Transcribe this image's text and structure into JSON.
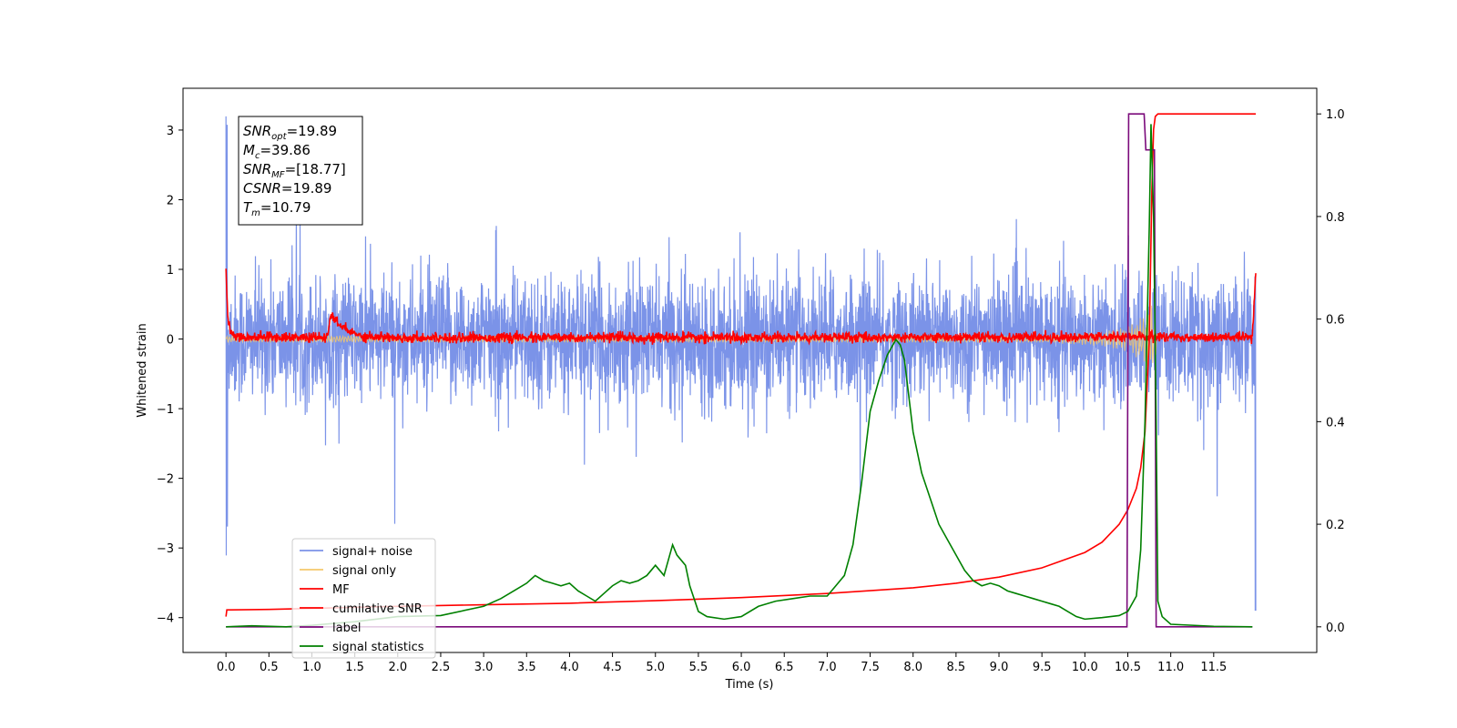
{
  "chart_data": {
    "type": "line",
    "xlabel": "Time (s)",
    "ylabel": "Whitened strain",
    "xlim": [
      -0.5,
      12.7
    ],
    "ylim": [
      -4.5,
      3.6
    ],
    "ylim_right": [
      -0.05,
      1.05
    ],
    "xticks": [
      0.0,
      0.5,
      1.0,
      1.5,
      2.0,
      2.5,
      3.0,
      3.5,
      4.0,
      4.5,
      5.0,
      5.5,
      6.0,
      6.5,
      7.0,
      7.5,
      8.0,
      8.5,
      9.0,
      9.5,
      10.0,
      10.5,
      11.0,
      11.5
    ],
    "xtick_labels": [
      "0.0",
      "0.5",
      "1.0",
      "1.5",
      "2.0",
      "2.5",
      "3.0",
      "3.5",
      "4.0",
      "4.5",
      "5.0",
      "5.5",
      "6.0",
      "6.5",
      "7.0",
      "7.5",
      "8.0",
      "8.5",
      "9.0",
      "9.5",
      "10.0",
      "10.5",
      "11.0",
      "11.5"
    ],
    "yticks_left": [
      3,
      2,
      1,
      0,
      -1,
      -2,
      -3,
      -4
    ],
    "ytick_labels_left": [
      "3",
      "2",
      "1",
      "0",
      "−1",
      "−2",
      "−3",
      "−4"
    ],
    "yticks_right": [
      1.0,
      0.8,
      0.6,
      0.4,
      0.2,
      0.0
    ],
    "ytick_labels_right": [
      "1.0",
      "0.8",
      "0.6",
      "0.4",
      "0.2",
      "0.0"
    ],
    "grid": false,
    "legend_position": "lower-left",
    "annotation": {
      "lines": [
        {
          "base": "SNR",
          "sub": "opt",
          "rest": "=19.89"
        },
        {
          "base": "M",
          "sub": "c",
          "rest": "=39.86"
        },
        {
          "base": "SNR",
          "sub": "MF",
          "rest": "=[18.77]"
        },
        {
          "base": "CSNR",
          "sub": "",
          "rest": "=19.89"
        },
        {
          "base": "T",
          "sub": "m",
          "rest": "=10.79"
        }
      ],
      "position": "upper-left"
    },
    "series": [
      {
        "name": "signal+ noise",
        "color": "#7b93e8",
        "axis": "left",
        "description": "whitened noise around 0",
        "noise_amplitude": 0.45,
        "x_range": [
          0.0,
          11.99
        ]
      },
      {
        "name": "signal only",
        "color": "#f5c86b",
        "axis": "left",
        "envelope": [
          [
            0.0,
            0.05
          ],
          [
            9.5,
            0.05
          ],
          [
            10.2,
            0.1
          ],
          [
            10.5,
            0.18
          ],
          [
            10.7,
            0.35
          ],
          [
            10.79,
            0.5
          ],
          [
            10.85,
            0.05
          ]
        ]
      },
      {
        "name": "MF",
        "color": "#ff0000",
        "axis": "left",
        "x": [
          0.0,
          0.02,
          0.05,
          0.1,
          0.2,
          1.18,
          1.22,
          1.3,
          1.45,
          1.6,
          2.0,
          6.0,
          10.0,
          11.0,
          11.95,
          11.99
        ],
        "y": [
          1.0,
          0.35,
          0.12,
          0.05,
          0.03,
          0.02,
          0.35,
          0.22,
          0.1,
          0.04,
          0.02,
          0.02,
          0.03,
          0.03,
          0.02,
          0.95
        ]
      },
      {
        "name": "cumilative SNR",
        "color": "#ff0000",
        "axis": "right",
        "x": [
          0.0,
          0.01,
          0.5,
          1.0,
          2.0,
          3.0,
          4.0,
          5.0,
          6.0,
          7.0,
          8.0,
          8.5,
          9.0,
          9.5,
          10.0,
          10.2,
          10.4,
          10.5,
          10.6,
          10.65,
          10.7,
          10.75,
          10.78,
          10.8,
          10.82,
          10.85,
          11.0,
          11.5,
          11.99
        ],
        "y": [
          0.02,
          0.033,
          0.034,
          0.036,
          0.04,
          0.043,
          0.046,
          0.051,
          0.057,
          0.065,
          0.076,
          0.085,
          0.097,
          0.115,
          0.145,
          0.165,
          0.2,
          0.228,
          0.27,
          0.31,
          0.38,
          0.56,
          0.85,
          0.97,
          0.995,
          1.0,
          1.0,
          1.0,
          1.0
        ]
      },
      {
        "name": "label",
        "color": "#7b0a7b",
        "axis": "right",
        "x": [
          0.0,
          10.49,
          10.51,
          10.69,
          10.71,
          10.81,
          10.83,
          11.95
        ],
        "y": [
          0.0,
          0.0,
          1.0,
          1.0,
          0.93,
          0.93,
          0.0,
          0.0
        ]
      },
      {
        "name": "signal statistics",
        "color": "#008000",
        "axis": "right",
        "x": [
          0.0,
          0.3,
          0.7,
          1.0,
          1.5,
          2.0,
          2.5,
          3.0,
          3.2,
          3.4,
          3.5,
          3.6,
          3.7,
          3.8,
          3.9,
          4.0,
          4.1,
          4.2,
          4.3,
          4.4,
          4.5,
          4.6,
          4.7,
          4.8,
          4.9,
          5.0,
          5.05,
          5.1,
          5.15,
          5.2,
          5.25,
          5.3,
          5.35,
          5.4,
          5.5,
          5.6,
          5.8,
          6.0,
          6.2,
          6.4,
          6.6,
          6.8,
          7.0,
          7.1,
          7.2,
          7.3,
          7.4,
          7.5,
          7.6,
          7.7,
          7.8,
          7.85,
          7.9,
          8.0,
          8.1,
          8.2,
          8.3,
          8.4,
          8.5,
          8.6,
          8.7,
          8.8,
          8.9,
          9.0,
          9.1,
          9.2,
          9.3,
          9.4,
          9.5,
          9.6,
          9.7,
          9.8,
          9.9,
          10.0,
          10.2,
          10.4,
          10.5,
          10.6,
          10.65,
          10.7,
          10.75,
          10.77,
          10.8,
          10.83,
          10.85,
          10.9,
          11.0,
          11.5,
          11.95
        ],
        "y": [
          0.0,
          0.002,
          0.0,
          0.003,
          0.01,
          0.02,
          0.022,
          0.04,
          0.055,
          0.075,
          0.085,
          0.1,
          0.09,
          0.085,
          0.08,
          0.085,
          0.07,
          0.06,
          0.05,
          0.065,
          0.08,
          0.09,
          0.085,
          0.09,
          0.1,
          0.12,
          0.11,
          0.1,
          0.13,
          0.16,
          0.14,
          0.13,
          0.12,
          0.08,
          0.03,
          0.02,
          0.015,
          0.02,
          0.04,
          0.05,
          0.055,
          0.06,
          0.06,
          0.08,
          0.1,
          0.16,
          0.28,
          0.42,
          0.48,
          0.53,
          0.56,
          0.55,
          0.52,
          0.38,
          0.3,
          0.25,
          0.2,
          0.17,
          0.14,
          0.11,
          0.09,
          0.08,
          0.085,
          0.08,
          0.07,
          0.065,
          0.06,
          0.055,
          0.05,
          0.045,
          0.04,
          0.03,
          0.02,
          0.015,
          0.018,
          0.022,
          0.03,
          0.06,
          0.15,
          0.4,
          0.78,
          0.98,
          0.8,
          0.4,
          0.05,
          0.02,
          0.005,
          0.001,
          0.0
        ]
      }
    ]
  }
}
